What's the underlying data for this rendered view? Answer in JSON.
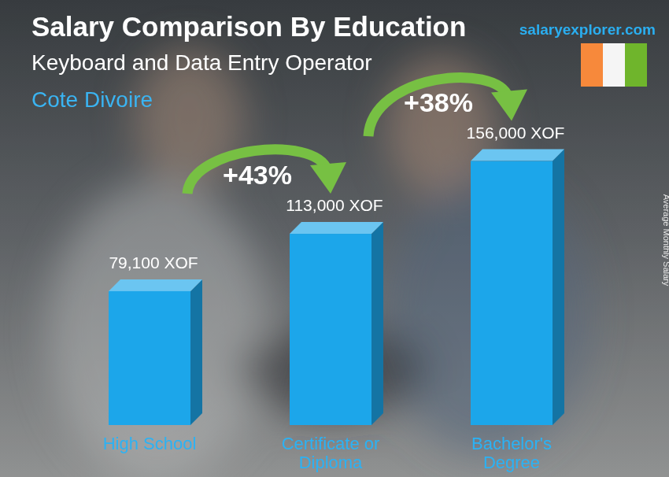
{
  "chart_data": {
    "type": "bar",
    "title": "Salary Comparison By Education",
    "subtitle": "Keyboard and Data Entry Operator",
    "location": "Cote Divoire",
    "source": "salaryexplorer.com",
    "y_label": "Average Monthly Salary",
    "categories": [
      "High School",
      "Certificate or Diploma",
      "Bachelor's Degree"
    ],
    "values": [
      79100,
      113000,
      156000
    ],
    "value_labels": [
      "79,100 XOF",
      "113,000 XOF",
      "156,000 XOF"
    ],
    "annotations": [
      "+43%",
      "+38%"
    ],
    "color": "#1ca6ea",
    "ylim": [
      0,
      180000
    ],
    "data_labels": true,
    "tick_labels": false,
    "grid": false
  }
}
